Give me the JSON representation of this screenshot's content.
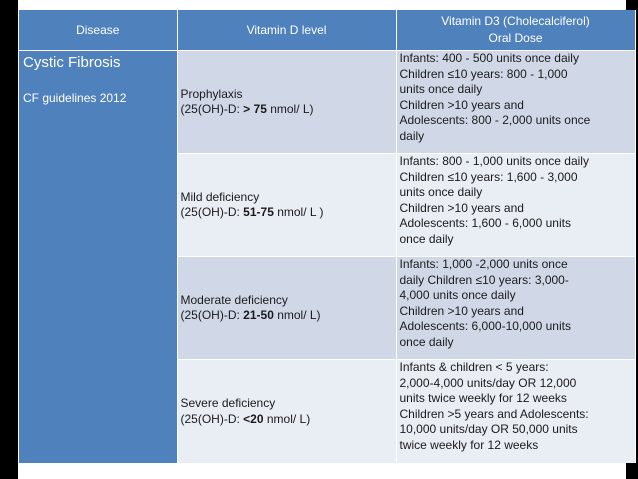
{
  "headers": {
    "disease": "Disease",
    "level": "Vitamin D level",
    "dose_line1": "Vitamin D3 (Cholecalciferol)",
    "dose_line2": "Oral Dose"
  },
  "disease": {
    "title": "Cystic Fibrosis",
    "subtitle": "CF guidelines 2012"
  },
  "rows": [
    {
      "name": "Prophylaxis",
      "level_prefix": "(25(OH)-D: ",
      "level_value": "> 75",
      "level_suffix": " nmol/ L)",
      "dose": [
        "Infants: 400 - 500 units once daily",
        "Children ≤10 years: 800 - 1,000",
        "units once daily",
        "Children >10 years and",
        "Adolescents: 800 - 2,000 units once",
        "daily"
      ]
    },
    {
      "name": "Mild deficiency",
      "level_prefix": "(25(OH)-D: ",
      "level_value": "51-75",
      "level_suffix": " nmol/ L )",
      "dose": [
        "Infants: 800 - 1,000 units once daily",
        "Children ≤10 years: 1,600 - 3,000",
        "units once daily",
        "Children >10 years and",
        "Adolescents:  1,600 - 6,000 units",
        "once daily"
      ]
    },
    {
      "name": "Moderate deficiency",
      "level_prefix": "(25(OH)-D: ",
      "level_value": "21-50",
      "level_suffix": " nmol/ L)",
      "dose": [
        "Infants: 1,000 -2,000 units once",
        "daily Children ≤10 years: 3,000-",
        "4,000 units once daily",
        "Children >10 years and",
        "Adolescents: 6,000-10,000 units",
        "once daily"
      ]
    },
    {
      "name": "Severe deficiency",
      "level_prefix": "(25(OH)-D: ",
      "level_value": "<20",
      "level_suffix": " nmol/ L)",
      "dose": [
        "Infants & children < 5 years:",
        "2,000-4,000 units/day OR 12,000",
        "units twice weekly for 12 weeks",
        "Children >5 years and Adolescents:",
        "10,000 units/day OR 50,000 units",
        "twice weekly for 12 weeks"
      ]
    }
  ]
}
